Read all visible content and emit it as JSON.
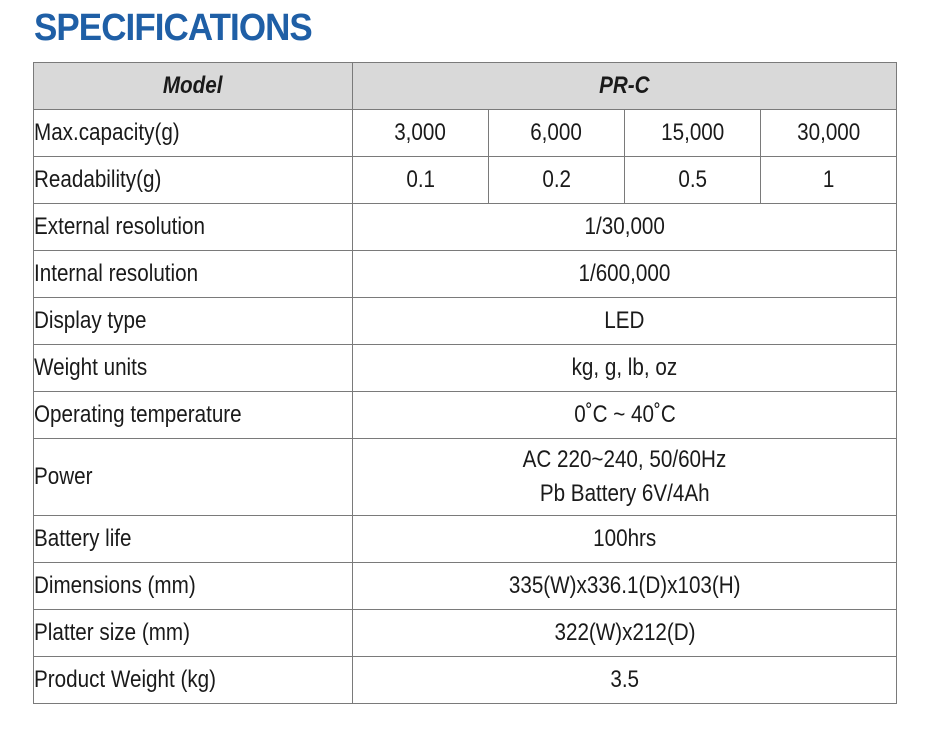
{
  "title": "SPECIFICATIONS",
  "header": {
    "label": "Model",
    "value": "PR-C"
  },
  "capacity": {
    "label": "Max.capacity(g)",
    "values": [
      "3,000",
      "6,000",
      "15,000",
      "30,000"
    ]
  },
  "readability": {
    "label": "Readability(g)",
    "values": [
      "0.1",
      "0.2",
      "0.5",
      "1"
    ]
  },
  "rows": [
    {
      "label": "External resolution",
      "value": "1/30,000"
    },
    {
      "label": "Internal resolution",
      "value": "1/600,000"
    },
    {
      "label": "Display type",
      "value": "LED"
    },
    {
      "label": "Weight units",
      "value": "kg, g, lb, oz"
    },
    {
      "label": "Operating temperature",
      "value": "0˚C ~ 40˚C"
    }
  ],
  "power": {
    "label": "Power",
    "lines": [
      "AC 220~240, 50/60Hz",
      "Pb Battery 6V/4Ah"
    ]
  },
  "rows2": [
    {
      "label": "Battery life",
      "value": "100hrs"
    },
    {
      "label": "Dimensions (mm)",
      "value": "335(W)x336.1(D)x103(H)"
    },
    {
      "label": "Platter size (mm)",
      "value": "322(W)x212(D)"
    },
    {
      "label": "Product Weight (kg)",
      "value": "3.5"
    }
  ]
}
